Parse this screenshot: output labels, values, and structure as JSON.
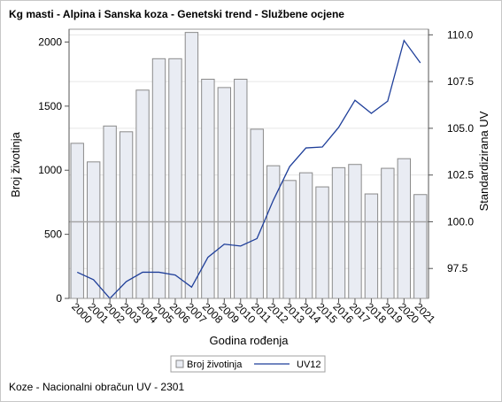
{
  "title": "Kg masti - Alpina i Sanska koza - Genetski trend - Službene ocjene",
  "footnote": "Koze - Nacionalni obračun UV - 2301",
  "chart_data": {
    "type": "bar",
    "categories": [
      "2000",
      "2001",
      "2002",
      "2003",
      "2004",
      "2005",
      "2006",
      "2007",
      "2008",
      "2009",
      "2010",
      "2011",
      "2012",
      "2013",
      "2014",
      "2015",
      "2016",
      "2017",
      "2018",
      "2019",
      "2020",
      "2021"
    ],
    "series": [
      {
        "name": "Broj životinja",
        "axis": "left",
        "type": "bar",
        "color": "#e9ecf3",
        "values": [
          1210,
          1065,
          1345,
          1300,
          1625,
          1870,
          1870,
          2075,
          1710,
          1645,
          1710,
          1320,
          1035,
          920,
          980,
          870,
          1020,
          1045,
          815,
          1015,
          1090,
          810
        ]
      },
      {
        "name": "UV12",
        "axis": "right",
        "type": "line",
        "color": "#1f3f9a",
        "values": [
          97.3,
          96.9,
          95.9,
          96.8,
          97.3,
          97.3,
          97.15,
          96.5,
          98.1,
          98.8,
          98.7,
          99.1,
          101.15,
          102.95,
          103.95,
          104.0,
          105.05,
          106.5,
          105.8,
          106.45,
          109.7,
          108.5
        ]
      }
    ],
    "xlabel": "Godina rođenja",
    "ylabel": "Broj životinja",
    "y2label": "Standardizirana UV",
    "ylim": [
      0,
      2100
    ],
    "yticks": [
      0,
      500,
      1000,
      1500,
      2000
    ],
    "y2lim": [
      95.9,
      110.3
    ],
    "y2ticks": [
      97.5,
      100.0,
      102.5,
      105.0,
      107.5,
      110.0
    ],
    "y2tick_labels": [
      "97.5",
      "100.0",
      "102.5",
      "105.0",
      "107.5",
      "110.0"
    ],
    "reference_line": {
      "axis": "right",
      "value": 100.0,
      "color": "#a5a5a5"
    },
    "grid": true,
    "legend_position": "bottom"
  }
}
